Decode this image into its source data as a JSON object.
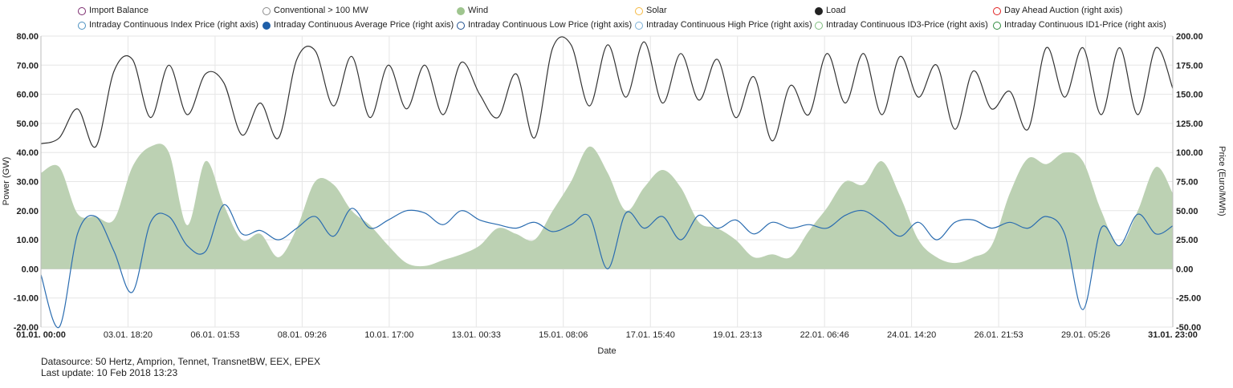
{
  "legend": [
    {
      "label": "Import Balance",
      "color": "#7b2a6e",
      "filled": false
    },
    {
      "label": "Conventional > 100 MW",
      "color": "#8c8c8c",
      "filled": false
    },
    {
      "label": "Wind",
      "color": "#9fc58f",
      "filled": true
    },
    {
      "label": "Solar",
      "color": "#f5b942",
      "filled": false
    },
    {
      "label": "Load",
      "color": "#222222",
      "filled": true
    },
    {
      "label": "Day Ahead Auction (right axis)",
      "color": "#e02020",
      "filled": false
    },
    {
      "label": "Intraday Continuous Index Price (right axis)",
      "color": "#4a90c0",
      "filled": false
    },
    {
      "label": "Intraday Continuous Average Price (right axis)",
      "color": "#1f5fa8",
      "filled": true
    },
    {
      "label": "Intraday Continuous Low Price (right axis)",
      "color": "#1f4f90",
      "filled": false
    },
    {
      "label": "Intraday Continuous High Price (right axis)",
      "color": "#7ab0d8",
      "filled": false
    },
    {
      "label": "Intraday Continuous ID3-Price (right axis)",
      "color": "#7fbf7f",
      "filled": false
    },
    {
      "label": "Intraday Continuous ID1-Price (right axis)",
      "color": "#2e8b3e",
      "filled": false
    }
  ],
  "footer": {
    "datasource": "Datasource: 50 Hertz, Amprion, Tennet, TransnetBW, EEX, EPEX",
    "last_update": "Last update: 10 Feb 2018 13:23"
  },
  "chart_data": {
    "type": "area",
    "xlabel": "Date",
    "ylabel": "Power (GW)",
    "y2label": "Price (Euro/MWh)",
    "x_range": [
      "01.01. 00:00",
      "31.01. 23:00"
    ],
    "ylim": [
      -20,
      80
    ],
    "y2lim": [
      -50,
      200
    ],
    "y_ticks": [
      "80.00",
      "70.00",
      "60.00",
      "50.00",
      "40.00",
      "30.00",
      "20.00",
      "10.00",
      "0.00",
      "-10.00",
      "-20.00"
    ],
    "y2_ticks": [
      "200.00",
      "175.00",
      "150.00",
      "125.00",
      "100.00",
      "75.00",
      "50.00",
      "25.00",
      "0.00",
      "-25.00",
      "-50.00"
    ],
    "x_ticks": [
      "01.01. 00:00",
      "03.01. 18:20",
      "06.01. 01:53",
      "08.01. 09:26",
      "10.01. 17:00",
      "13.01. 00:33",
      "15.01. 08:06",
      "17.01. 15:40",
      "19.01. 23:13",
      "22.01. 06:46",
      "24.01. 14:20",
      "26.01. 21:53",
      "29.01. 05:26",
      "31.01. 23:00"
    ],
    "grid": true,
    "legend_position": "top",
    "x_days": [
      0,
      0.5,
      1,
      1.5,
      2,
      2.5,
      3,
      3.5,
      4,
      4.5,
      5,
      5.5,
      6,
      6.5,
      7,
      7.5,
      8,
      8.5,
      9,
      9.5,
      10,
      10.5,
      11,
      11.5,
      12,
      12.5,
      13,
      13.5,
      14,
      14.5,
      15,
      15.5,
      16,
      16.5,
      17,
      17.5,
      18,
      18.5,
      19,
      19.5,
      20,
      20.5,
      21,
      21.5,
      22,
      22.5,
      23,
      23.5,
      24,
      24.5,
      25,
      25.5,
      26,
      26.5,
      27,
      27.5,
      28,
      28.5,
      29,
      29.5,
      30,
      30.5,
      30.958
    ],
    "series": [
      {
        "name": "Wind",
        "axis": "left",
        "color": "#bcd1b3",
        "values": [
          33,
          35,
          19,
          18,
          17,
          35,
          42,
          40,
          15,
          37,
          22,
          10,
          12,
          4,
          14,
          30,
          29,
          20,
          15,
          8,
          2,
          1,
          3,
          5,
          8,
          14,
          12,
          10,
          20,
          30,
          42,
          33,
          20,
          28,
          34,
          28,
          16,
          14,
          10,
          4,
          5,
          4,
          13,
          21,
          30,
          29,
          37,
          25,
          10,
          4,
          2,
          4,
          8,
          26,
          38,
          36,
          40,
          37,
          20,
          8,
          20,
          35,
          26
        ]
      },
      {
        "name": "Load",
        "axis": "left",
        "color": "#333333",
        "values": [
          43,
          45,
          55,
          42,
          68,
          72,
          52,
          70,
          53,
          67,
          64,
          46,
          57,
          45,
          72,
          75,
          56,
          73,
          52,
          70,
          55,
          70,
          53,
          71,
          60,
          52,
          67,
          45,
          76,
          77,
          56,
          77,
          59,
          78,
          57,
          74,
          58,
          72,
          52,
          66,
          44,
          63,
          53,
          74,
          57,
          74,
          53,
          73,
          59,
          70,
          48,
          68,
          55,
          61,
          48,
          76,
          59,
          76,
          53,
          76,
          53,
          76,
          62
        ]
      },
      {
        "name": "Intraday Continuous Average Price (right axis)",
        "axis": "right",
        "color": "#2a6cb0",
        "values": [
          -5,
          -50,
          30,
          45,
          15,
          -20,
          40,
          45,
          20,
          15,
          55,
          30,
          33,
          25,
          35,
          45,
          28,
          52,
          35,
          42,
          50,
          48,
          38,
          50,
          42,
          38,
          35,
          40,
          32,
          38,
          45,
          0,
          48,
          35,
          45,
          25,
          46,
          35,
          42,
          30,
          40,
          35,
          38,
          35,
          46,
          50,
          40,
          28,
          40,
          25,
          40,
          42,
          35,
          40,
          35,
          45,
          30,
          -35,
          35,
          20,
          47,
          30,
          37
        ]
      }
    ]
  }
}
